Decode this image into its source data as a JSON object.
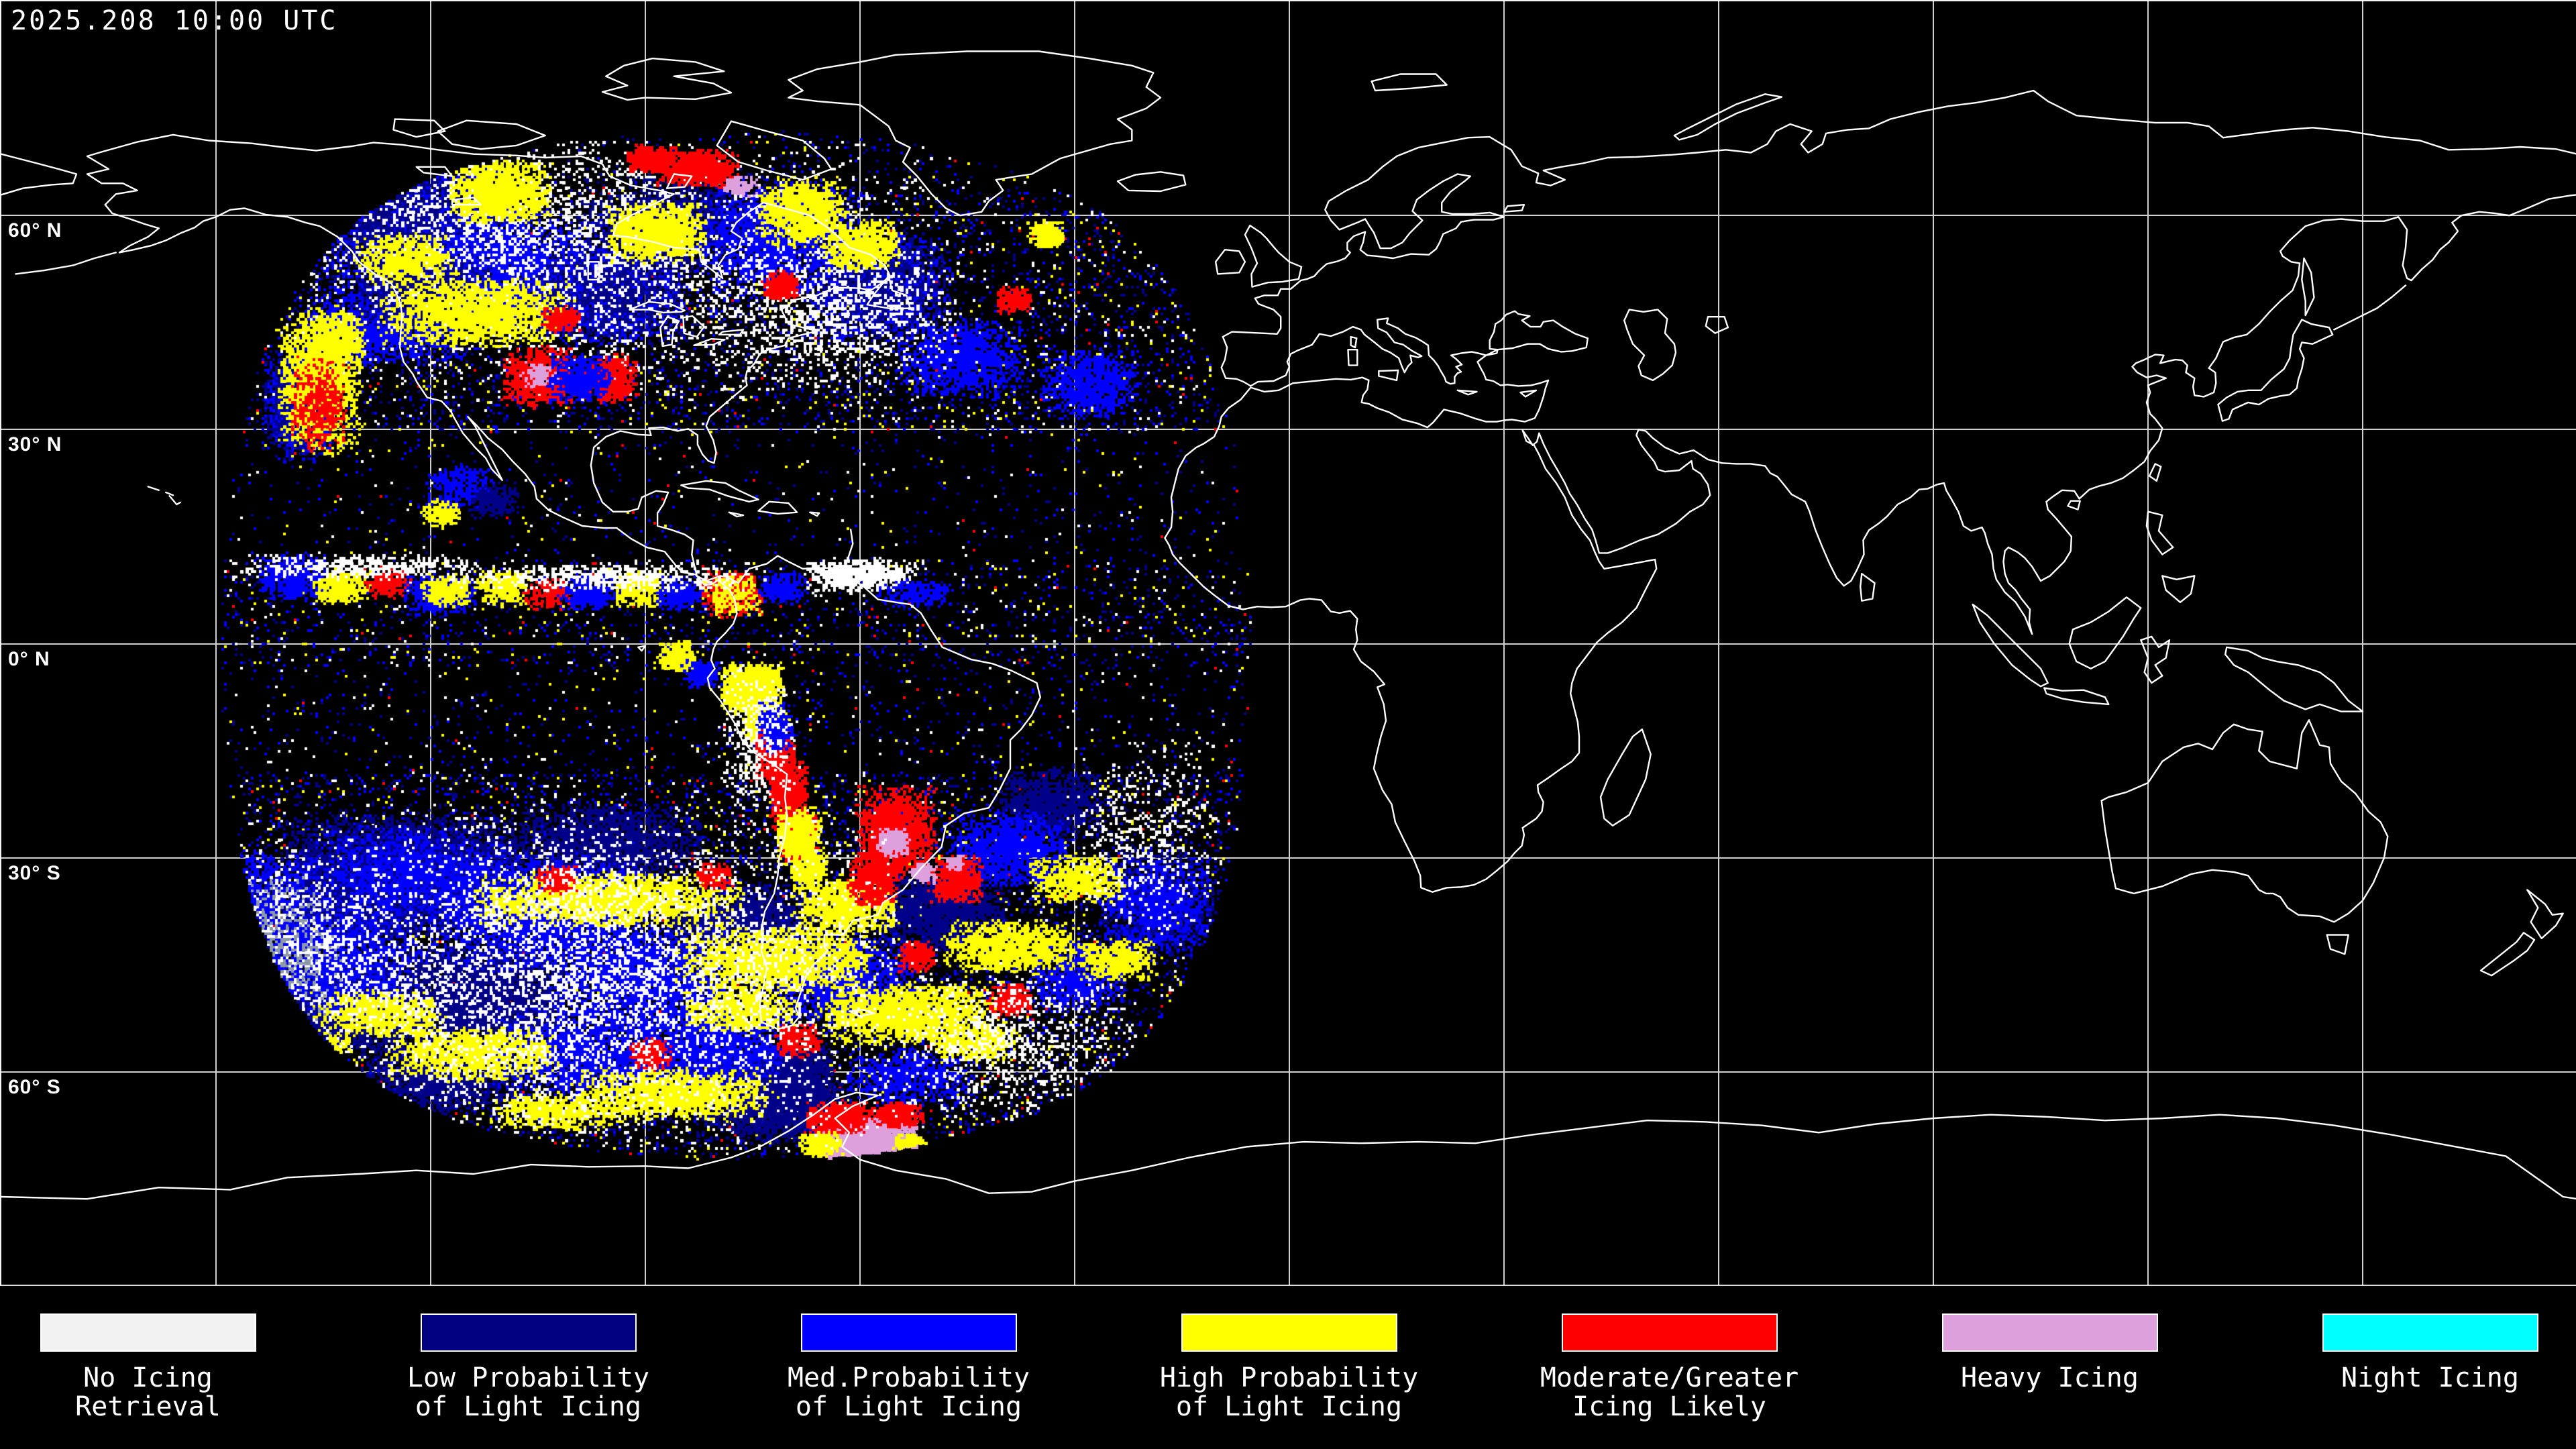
{
  "header": {
    "timestamp": "2025.208 10:00 UTC"
  },
  "map": {
    "projection": "equirectangular",
    "grid": {
      "lat_interval_deg": 30,
      "lon_interval_deg": 30
    },
    "latitude_labels": [
      {
        "text": "60° N",
        "lat": 60
      },
      {
        "text": "30° N",
        "lat": 30
      },
      {
        "text": "0° N",
        "lat": 0
      },
      {
        "text": "30° S",
        "lat": -30
      },
      {
        "text": "60° S",
        "lat": -60
      }
    ],
    "satellite_disk": {
      "center_lon_deg": -77.5,
      "angular_radius_deg": 72
    }
  },
  "legend": {
    "entries": [
      {
        "label_lines": [
          "No Icing",
          "Retrieval"
        ],
        "color": "#f2f2f2"
      },
      {
        "label_lines": [
          "Low Probability",
          "of Light Icing"
        ],
        "color": "#000080"
      },
      {
        "label_lines": [
          "Med.Probability",
          "of Light Icing"
        ],
        "color": "#0000ff"
      },
      {
        "label_lines": [
          "High Probability",
          "of Light Icing"
        ],
        "color": "#ffff00"
      },
      {
        "label_lines": [
          "Moderate/Greater",
          "Icing Likely"
        ],
        "color": "#ff0000"
      },
      {
        "label_lines": [
          "Heavy Icing",
          ""
        ],
        "color": "#dda0dd"
      },
      {
        "label_lines": [
          "Night Icing",
          ""
        ],
        "color": "#00ffff"
      }
    ]
  },
  "colors": {
    "background": "#000000",
    "coastline": "#ffffff",
    "gridline": "#cfcfcf",
    "text": "#ffffff"
  }
}
